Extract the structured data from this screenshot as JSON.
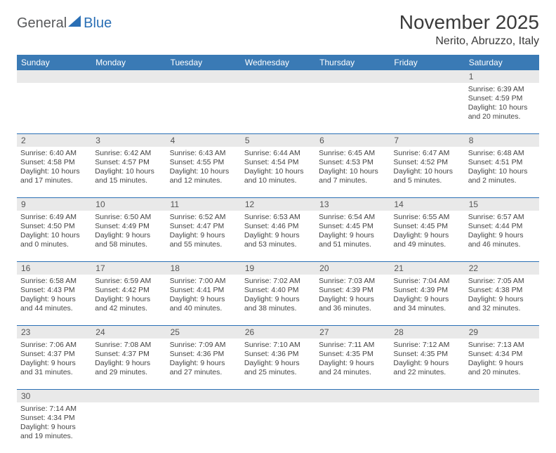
{
  "brand": {
    "part1": "General",
    "part2": "Blue"
  },
  "title": "November 2025",
  "location": "Nerito, Abruzzo, Italy",
  "colors": {
    "header_bar": "#3a7ab5",
    "row_divider": "#2a6fb5",
    "daynum_bg": "#e9e9e9",
    "text": "#3a3a3a",
    "logo_blue": "#2a6fb5",
    "logo_gray": "#58595b"
  },
  "days_of_week": [
    "Sunday",
    "Monday",
    "Tuesday",
    "Wednesday",
    "Thursday",
    "Friday",
    "Saturday"
  ],
  "weeks": [
    [
      null,
      null,
      null,
      null,
      null,
      null,
      {
        "n": "1",
        "sr": "Sunrise: 6:39 AM",
        "ss": "Sunset: 4:59 PM",
        "d1": "Daylight: 10 hours",
        "d2": "and 20 minutes."
      }
    ],
    [
      {
        "n": "2",
        "sr": "Sunrise: 6:40 AM",
        "ss": "Sunset: 4:58 PM",
        "d1": "Daylight: 10 hours",
        "d2": "and 17 minutes."
      },
      {
        "n": "3",
        "sr": "Sunrise: 6:42 AM",
        "ss": "Sunset: 4:57 PM",
        "d1": "Daylight: 10 hours",
        "d2": "and 15 minutes."
      },
      {
        "n": "4",
        "sr": "Sunrise: 6:43 AM",
        "ss": "Sunset: 4:55 PM",
        "d1": "Daylight: 10 hours",
        "d2": "and 12 minutes."
      },
      {
        "n": "5",
        "sr": "Sunrise: 6:44 AM",
        "ss": "Sunset: 4:54 PM",
        "d1": "Daylight: 10 hours",
        "d2": "and 10 minutes."
      },
      {
        "n": "6",
        "sr": "Sunrise: 6:45 AM",
        "ss": "Sunset: 4:53 PM",
        "d1": "Daylight: 10 hours",
        "d2": "and 7 minutes."
      },
      {
        "n": "7",
        "sr": "Sunrise: 6:47 AM",
        "ss": "Sunset: 4:52 PM",
        "d1": "Daylight: 10 hours",
        "d2": "and 5 minutes."
      },
      {
        "n": "8",
        "sr": "Sunrise: 6:48 AM",
        "ss": "Sunset: 4:51 PM",
        "d1": "Daylight: 10 hours",
        "d2": "and 2 minutes."
      }
    ],
    [
      {
        "n": "9",
        "sr": "Sunrise: 6:49 AM",
        "ss": "Sunset: 4:50 PM",
        "d1": "Daylight: 10 hours",
        "d2": "and 0 minutes."
      },
      {
        "n": "10",
        "sr": "Sunrise: 6:50 AM",
        "ss": "Sunset: 4:49 PM",
        "d1": "Daylight: 9 hours",
        "d2": "and 58 minutes."
      },
      {
        "n": "11",
        "sr": "Sunrise: 6:52 AM",
        "ss": "Sunset: 4:47 PM",
        "d1": "Daylight: 9 hours",
        "d2": "and 55 minutes."
      },
      {
        "n": "12",
        "sr": "Sunrise: 6:53 AM",
        "ss": "Sunset: 4:46 PM",
        "d1": "Daylight: 9 hours",
        "d2": "and 53 minutes."
      },
      {
        "n": "13",
        "sr": "Sunrise: 6:54 AM",
        "ss": "Sunset: 4:45 PM",
        "d1": "Daylight: 9 hours",
        "d2": "and 51 minutes."
      },
      {
        "n": "14",
        "sr": "Sunrise: 6:55 AM",
        "ss": "Sunset: 4:45 PM",
        "d1": "Daylight: 9 hours",
        "d2": "and 49 minutes."
      },
      {
        "n": "15",
        "sr": "Sunrise: 6:57 AM",
        "ss": "Sunset: 4:44 PM",
        "d1": "Daylight: 9 hours",
        "d2": "and 46 minutes."
      }
    ],
    [
      {
        "n": "16",
        "sr": "Sunrise: 6:58 AM",
        "ss": "Sunset: 4:43 PM",
        "d1": "Daylight: 9 hours",
        "d2": "and 44 minutes."
      },
      {
        "n": "17",
        "sr": "Sunrise: 6:59 AM",
        "ss": "Sunset: 4:42 PM",
        "d1": "Daylight: 9 hours",
        "d2": "and 42 minutes."
      },
      {
        "n": "18",
        "sr": "Sunrise: 7:00 AM",
        "ss": "Sunset: 4:41 PM",
        "d1": "Daylight: 9 hours",
        "d2": "and 40 minutes."
      },
      {
        "n": "19",
        "sr": "Sunrise: 7:02 AM",
        "ss": "Sunset: 4:40 PM",
        "d1": "Daylight: 9 hours",
        "d2": "and 38 minutes."
      },
      {
        "n": "20",
        "sr": "Sunrise: 7:03 AM",
        "ss": "Sunset: 4:39 PM",
        "d1": "Daylight: 9 hours",
        "d2": "and 36 minutes."
      },
      {
        "n": "21",
        "sr": "Sunrise: 7:04 AM",
        "ss": "Sunset: 4:39 PM",
        "d1": "Daylight: 9 hours",
        "d2": "and 34 minutes."
      },
      {
        "n": "22",
        "sr": "Sunrise: 7:05 AM",
        "ss": "Sunset: 4:38 PM",
        "d1": "Daylight: 9 hours",
        "d2": "and 32 minutes."
      }
    ],
    [
      {
        "n": "23",
        "sr": "Sunrise: 7:06 AM",
        "ss": "Sunset: 4:37 PM",
        "d1": "Daylight: 9 hours",
        "d2": "and 31 minutes."
      },
      {
        "n": "24",
        "sr": "Sunrise: 7:08 AM",
        "ss": "Sunset: 4:37 PM",
        "d1": "Daylight: 9 hours",
        "d2": "and 29 minutes."
      },
      {
        "n": "25",
        "sr": "Sunrise: 7:09 AM",
        "ss": "Sunset: 4:36 PM",
        "d1": "Daylight: 9 hours",
        "d2": "and 27 minutes."
      },
      {
        "n": "26",
        "sr": "Sunrise: 7:10 AM",
        "ss": "Sunset: 4:36 PM",
        "d1": "Daylight: 9 hours",
        "d2": "and 25 minutes."
      },
      {
        "n": "27",
        "sr": "Sunrise: 7:11 AM",
        "ss": "Sunset: 4:35 PM",
        "d1": "Daylight: 9 hours",
        "d2": "and 24 minutes."
      },
      {
        "n": "28",
        "sr": "Sunrise: 7:12 AM",
        "ss": "Sunset: 4:35 PM",
        "d1": "Daylight: 9 hours",
        "d2": "and 22 minutes."
      },
      {
        "n": "29",
        "sr": "Sunrise: 7:13 AM",
        "ss": "Sunset: 4:34 PM",
        "d1": "Daylight: 9 hours",
        "d2": "and 20 minutes."
      }
    ],
    [
      {
        "n": "30",
        "sr": "Sunrise: 7:14 AM",
        "ss": "Sunset: 4:34 PM",
        "d1": "Daylight: 9 hours",
        "d2": "and 19 minutes."
      },
      null,
      null,
      null,
      null,
      null,
      null
    ]
  ]
}
